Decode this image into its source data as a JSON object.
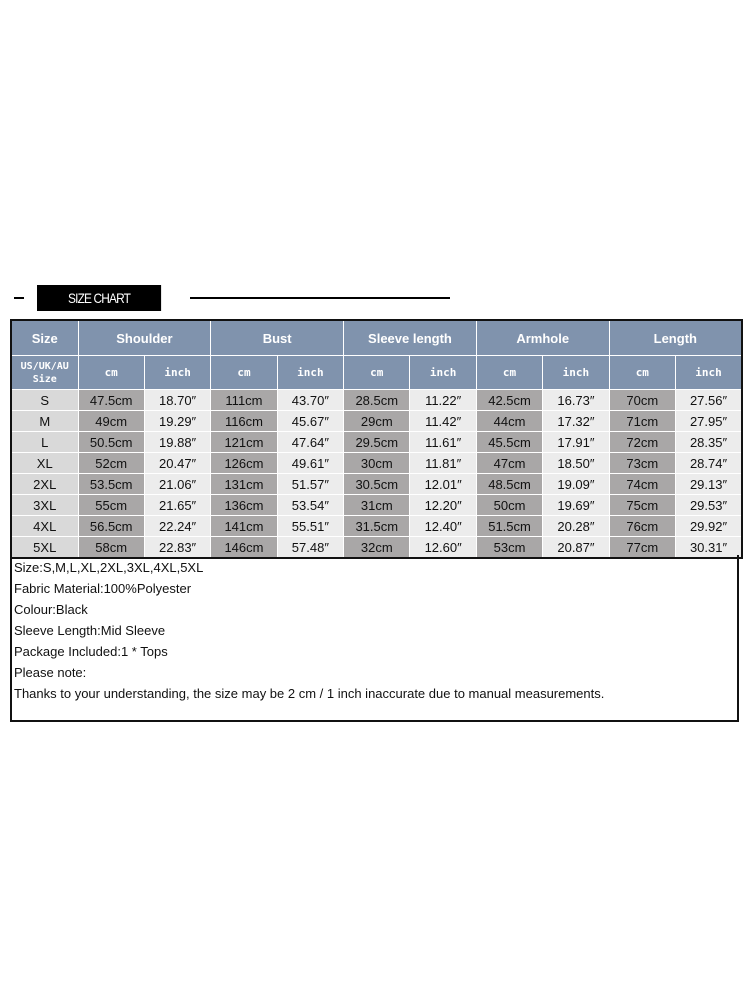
{
  "banner": {
    "title": "SIZE CHART"
  },
  "table": {
    "headers": [
      "Size",
      "Shoulder",
      "Bust",
      "Sleeve length",
      "Armhole",
      "Length"
    ],
    "subheader_size": "US/UK/AU Size",
    "unit_cm": "cm",
    "unit_inch": "inch",
    "rows": [
      [
        "S",
        "47.5cm",
        "18.70″",
        "111cm",
        "43.70″",
        "28.5cm",
        "11.22″",
        "42.5cm",
        "16.73″",
        "70cm",
        "27.56″"
      ],
      [
        "M",
        "49cm",
        "19.29″",
        "116cm",
        "45.67″",
        "29cm",
        "11.42″",
        "44cm",
        "17.32″",
        "71cm",
        "27.95″"
      ],
      [
        "L",
        "50.5cm",
        "19.88″",
        "121cm",
        "47.64″",
        "29.5cm",
        "11.61″",
        "45.5cm",
        "17.91″",
        "72cm",
        "28.35″"
      ],
      [
        "XL",
        "52cm",
        "20.47″",
        "126cm",
        "49.61″",
        "30cm",
        "11.81″",
        "47cm",
        "18.50″",
        "73cm",
        "28.74″"
      ],
      [
        "2XL",
        "53.5cm",
        "21.06″",
        "131cm",
        "51.57″",
        "30.5cm",
        "12.01″",
        "48.5cm",
        "19.09″",
        "74cm",
        "29.13″"
      ],
      [
        "3XL",
        "55cm",
        "21.65″",
        "136cm",
        "53.54″",
        "31cm",
        "12.20″",
        "50cm",
        "19.69″",
        "75cm",
        "29.53″"
      ],
      [
        "4XL",
        "56.5cm",
        "22.24″",
        "141cm",
        "55.51″",
        "31.5cm",
        "12.40″",
        "51.5cm",
        "20.28″",
        "76cm",
        "29.92″"
      ],
      [
        "5XL",
        "58cm",
        "22.83″",
        "146cm",
        "57.48″",
        "32cm",
        "12.60″",
        "53cm",
        "20.87″",
        "77cm",
        "30.31″"
      ]
    ]
  },
  "notes": [
    "Size:S,M,L,XL,2XL,3XL,4XL,5XL",
    "Fabric Material:100%Polyester",
    "Colour:Black",
    "Sleeve Length:Mid Sleeve",
    "Package Included:1 * Tops",
    "Please note:",
    "Thanks to your understanding, the size may be 2 cm / 1 inch inaccurate due to manual measurements."
  ]
}
